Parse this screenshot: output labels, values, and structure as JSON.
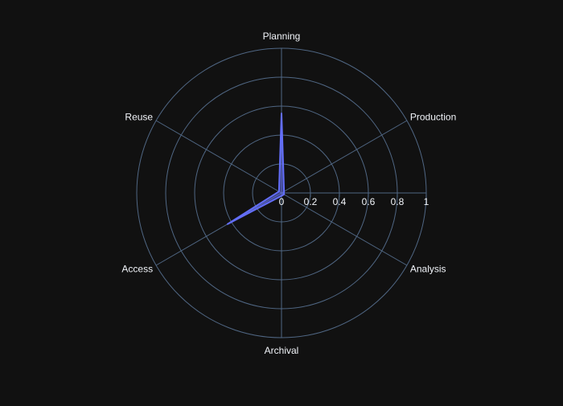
{
  "chart_data": {
    "type": "radar",
    "title": "",
    "categories": [
      "Planning",
      "Production",
      "Analysis",
      "Archival",
      "Access",
      "Reuse"
    ],
    "series": [
      {
        "values": [
          0.55,
          0.02,
          0.02,
          0.02,
          0.43,
          0.02
        ],
        "color": "#636efa"
      }
    ],
    "radial_range": [
      0,
      1
    ],
    "radial_ticks": [
      "0",
      "0.2",
      "0.4",
      "0.6",
      "0.8",
      "1"
    ],
    "radial_tick_values": [
      0,
      0.2,
      0.4,
      0.6,
      0.8,
      1
    ],
    "grid": true,
    "legend": "none",
    "colors": {
      "background": "#111111",
      "grid": "#506784",
      "text": "#f2f5fa",
      "series_fill": "#636efa",
      "series_line": "#636efa"
    }
  }
}
